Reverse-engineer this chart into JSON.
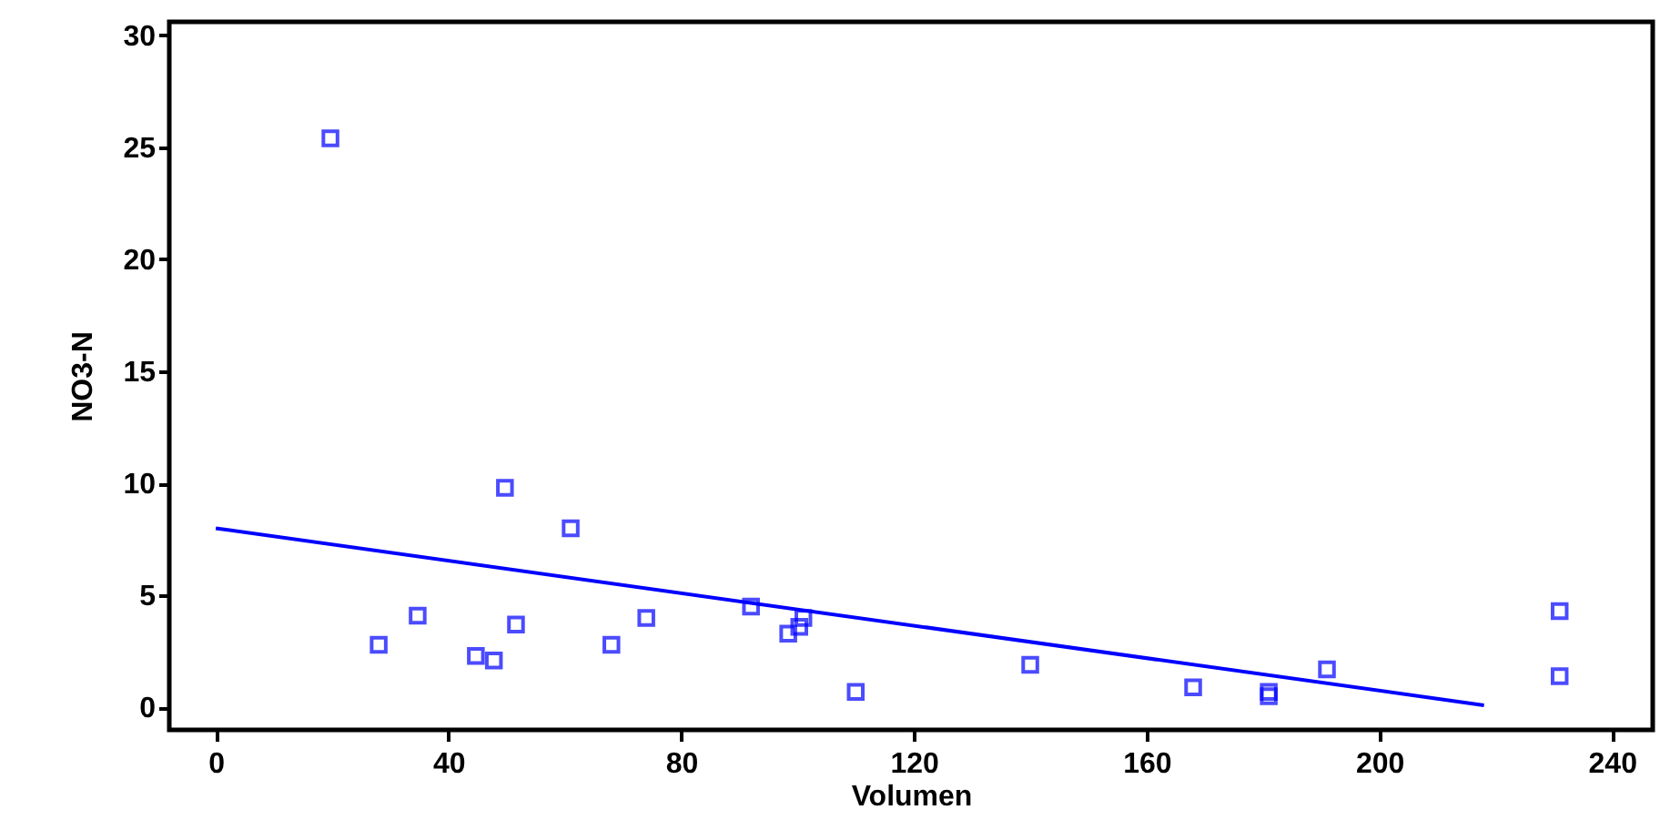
{
  "chart_data": {
    "type": "scatter",
    "xlabel": "Volumen",
    "ylabel": "NO3-N",
    "xlim": [
      -8,
      247
    ],
    "xticks": [
      0,
      40,
      80,
      120,
      160,
      200,
      240
    ],
    "ylim": [
      -1,
      30.6
    ],
    "yticks": [
      0,
      5,
      10,
      15,
      20,
      25,
      30
    ],
    "grid": false,
    "series": [
      {
        "marker": "square",
        "color": "#0000ff",
        "x": [
          19.7,
          28,
          34.7,
          44.7,
          47.8,
          49.7,
          51.6,
          61,
          68,
          74,
          92,
          98.4,
          100.3,
          101,
          110,
          140,
          168,
          181,
          181,
          191,
          231,
          231
        ],
        "values": [
          25.4,
          2.8,
          4.1,
          2.3,
          2.1,
          9.8,
          3.7,
          8.0,
          2.8,
          4.0,
          4.5,
          3.3,
          3.6,
          4.0,
          0.7,
          1.9,
          0.9,
          0.7,
          0.5,
          1.7,
          4.3,
          1.4
        ]
      },
      {
        "type": "line",
        "color": "#0000ff",
        "line_style": "solid",
        "x": [
          0,
          218
        ],
        "values": [
          8.0,
          0.1
        ]
      }
    ]
  }
}
